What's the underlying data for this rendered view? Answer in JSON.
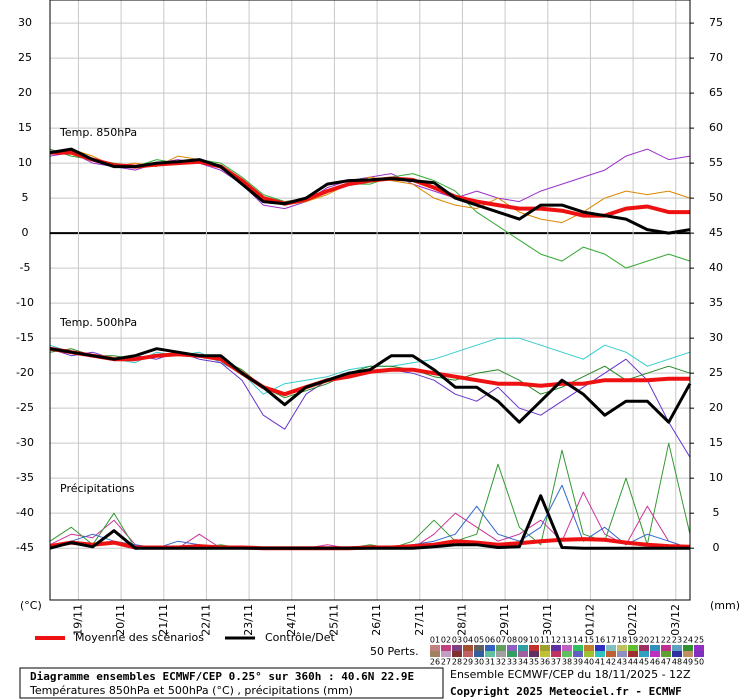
{
  "chart_data": {
    "type": "line",
    "title": "Diagramme ensembles ECMWF/CEP 0.25° sur 360h : 40.6N 22.9E",
    "subtitle": "Températures 850hPa et 500hPa (°C) , précipitations (mm)",
    "credit": "Ensemble ECMWF/CEP du 18/11/2025 - 12Z",
    "copyright": "Copyright 2025 Meteociel.fr - ECMWF",
    "y_label": "(°C)",
    "y2_label": "(mm)",
    "annotations": [
      "Temp. 850hPa",
      "Temp. 500hPa",
      "Précipitations"
    ],
    "grid": true,
    "x": [
      0,
      12,
      24,
      36,
      48,
      60,
      72,
      84,
      96,
      108,
      120,
      132,
      144,
      156,
      168,
      180,
      192,
      204,
      216,
      228,
      240,
      252,
      264,
      276,
      288,
      300,
      312,
      324,
      336,
      348,
      360
    ],
    "xlim": [
      0,
      360
    ],
    "xticks": [
      {
        "value": 16,
        "label": "19/11"
      },
      {
        "value": 40,
        "label": "20/11"
      },
      {
        "value": 64,
        "label": "21/11"
      },
      {
        "value": 88,
        "label": "22/11"
      },
      {
        "value": 112,
        "label": "23/11"
      },
      {
        "value": 136,
        "label": "24/11"
      },
      {
        "value": 160,
        "label": "25/11"
      },
      {
        "value": 184,
        "label": "26/11"
      },
      {
        "value": 208,
        "label": "27/11"
      },
      {
        "value": 232,
        "label": "28/11"
      },
      {
        "value": 256,
        "label": "29/11"
      },
      {
        "value": 280,
        "label": "30/11"
      },
      {
        "value": 304,
        "label": "01/12"
      },
      {
        "value": 328,
        "label": "02/12"
      },
      {
        "value": 352,
        "label": "03/12"
      }
    ],
    "ylim": [
      -52.4,
      33.3
    ],
    "yticks": [
      -45,
      -40,
      -35,
      -30,
      -25,
      -20,
      -15,
      -10,
      -5,
      0,
      5,
      10,
      15,
      20,
      25,
      30
    ],
    "y2lim": [
      -7.4,
      78.3
    ],
    "y2ticks": [
      0,
      5,
      10,
      15,
      20,
      25,
      30,
      35,
      40,
      45,
      50,
      55,
      60,
      65,
      70,
      75
    ],
    "series": [
      {
        "color": "#9933cc",
        "line_width": 1,
        "values": [
          11,
          11.5,
          10,
          9.5,
          9,
          10,
          10.5,
          10,
          9,
          7,
          4,
          3.5,
          4.5,
          6.5,
          7.5,
          8,
          8.5,
          7,
          6,
          5,
          6,
          5,
          4.5,
          6,
          7,
          8,
          9,
          11,
          12,
          10.5,
          11
        ]
      },
      {
        "color": "#33aa33",
        "line_width": 1,
        "values": [
          12,
          11,
          10.5,
          10,
          9.5,
          10.5,
          10,
          10.5,
          10,
          8,
          5.5,
          4.5,
          5,
          6,
          7,
          7,
          8,
          8.5,
          7.5,
          6,
          3,
          1,
          -1,
          -3,
          -4,
          -2,
          -3,
          -5,
          -4,
          -3,
          -4
        ]
      },
      {
        "color": "#dd8800",
        "line_width": 1,
        "values": [
          11.5,
          12,
          11,
          9.5,
          10,
          9.5,
          11,
          10.5,
          9.5,
          7.5,
          5,
          4,
          4.5,
          5.5,
          7,
          8,
          7.5,
          7,
          5,
          4,
          3.5,
          5,
          3,
          2,
          1.5,
          3,
          5,
          6,
          5.5,
          6,
          5
        ]
      },
      {
        "color": "#33cccc",
        "line_width": 1,
        "values": [
          -16,
          -17,
          -17.5,
          -18,
          -18.5,
          -17,
          -17.5,
          -17,
          -18.5,
          -20,
          -23,
          -21.5,
          -21,
          -20.5,
          -19.5,
          -19,
          -19,
          -18.5,
          -18,
          -17,
          -16,
          -15,
          -15,
          -16,
          -17,
          -18,
          -16,
          -17,
          -19,
          -18,
          -17
        ]
      },
      {
        "color": "#6633cc",
        "line_width": 1,
        "values": [
          -16.5,
          -17.5,
          -17,
          -18,
          -17.5,
          -18,
          -17,
          -18,
          -18.5,
          -21,
          -26,
          -28,
          -23,
          -21,
          -20,
          -20,
          -19.5,
          -20,
          -21,
          -23,
          -24,
          -22,
          -25,
          -26,
          -24,
          -22,
          -20,
          -18,
          -21,
          -27,
          -32
        ]
      },
      {
        "color": "#228822",
        "line_width": 1,
        "values": [
          -17,
          -16.5,
          -17.5,
          -17.5,
          -18,
          -17.5,
          -17,
          -17.5,
          -18,
          -19.5,
          -22,
          -23.5,
          -22.5,
          -21.5,
          -20,
          -19,
          -19,
          -19.5,
          -20.5,
          -21,
          -20,
          -19.5,
          -21,
          -23,
          -22,
          -20.5,
          -19,
          -21,
          -20,
          -19,
          -20
        ]
      },
      {
        "color": "#cc3399",
        "line_width": 1,
        "axis": "y2",
        "values": [
          0.5,
          2,
          1.5,
          4,
          0.5,
          0,
          0,
          2,
          0,
          0,
          0,
          0,
          0,
          0.5,
          0,
          0,
          0.3,
          0,
          2,
          5,
          3,
          1,
          2,
          4,
          1,
          8,
          2,
          0.5,
          6,
          1,
          0
        ]
      },
      {
        "color": "#339933",
        "line_width": 1,
        "axis": "y2",
        "values": [
          1,
          3,
          0.5,
          5,
          0,
          0.3,
          0,
          0,
          0.5,
          0,
          0,
          0,
          0,
          0,
          0,
          0.5,
          0,
          1,
          4,
          1,
          2,
          12,
          3,
          0.5,
          14,
          2,
          1,
          10,
          0.5,
          15,
          2
        ]
      },
      {
        "color": "#3366cc",
        "line_width": 1,
        "axis": "y2",
        "values": [
          0,
          1,
          2,
          1,
          0.5,
          0,
          1,
          0.5,
          0,
          0,
          0,
          0,
          0,
          0,
          0,
          0,
          0,
          0.5,
          1,
          2,
          6,
          2,
          1,
          3,
          9,
          1,
          3,
          0.5,
          2,
          1,
          0
        ]
      },
      {
        "name": "Moyenne des scénarios",
        "color": "#ee1111",
        "line_width": 4,
        "values": [
          11.5,
          11.5,
          10.5,
          9.7,
          9.5,
          9.8,
          10,
          10.2,
          9.5,
          7.5,
          5,
          4.2,
          4.8,
          6,
          7,
          7.5,
          7.8,
          7.6,
          6.5,
          5.2,
          4.5,
          4,
          3.5,
          3.5,
          3.2,
          2.5,
          2.5,
          3.5,
          3.8,
          3,
          3
        ]
      },
      {
        "name": "Contrôle/Det",
        "color": "#000000",
        "line_width": 3,
        "values": [
          11.5,
          12,
          10.5,
          9.5,
          9.5,
          10,
          10.2,
          10.5,
          9.5,
          7,
          4.5,
          4.2,
          5,
          7,
          7.5,
          7.6,
          7.8,
          7.5,
          7.2,
          5,
          4,
          3,
          2,
          4,
          4,
          3,
          2.5,
          2,
          0.5,
          0,
          0.5
        ]
      },
      {
        "color": "#ee1111",
        "line_width": 4,
        "values": [
          -16.5,
          -17,
          -17.5,
          -18,
          -18,
          -17.5,
          -17.3,
          -17.5,
          -18,
          -20,
          -22,
          -23,
          -22,
          -21,
          -20.5,
          -19.8,
          -19.5,
          -19.5,
          -20,
          -20.5,
          -21,
          -21.5,
          -21.5,
          -21.8,
          -21.5,
          -21.5,
          -21,
          -21,
          -21,
          -20.8,
          -20.8
        ]
      },
      {
        "color": "#000000",
        "line_width": 3,
        "values": [
          -16.5,
          -17,
          -17.5,
          -18,
          -17.5,
          -16.5,
          -17,
          -17.5,
          -17.5,
          -20,
          -22,
          -24.5,
          -22,
          -21,
          -20,
          -19.5,
          -17.5,
          -17.5,
          -19.5,
          -22,
          -22,
          -24,
          -27,
          -24,
          -21,
          -23,
          -26,
          -24,
          -24,
          -27,
          -21.5
        ]
      },
      {
        "color": "#ee1111",
        "line_width": 4,
        "axis": "y2",
        "values": [
          0.3,
          0.8,
          0.5,
          0.8,
          0.1,
          0.1,
          0.1,
          0.3,
          0.1,
          0.1,
          0,
          0,
          0,
          0,
          0,
          0.1,
          0.1,
          0.3,
          0.5,
          1,
          0.8,
          0.5,
          0.7,
          1,
          1.2,
          1.3,
          1.2,
          0.8,
          0.5,
          0.3,
          0.2
        ]
      },
      {
        "color": "#000000",
        "line_width": 3,
        "axis": "y2",
        "values": [
          0,
          0.8,
          0.2,
          2.5,
          0,
          0,
          0,
          0,
          0,
          0,
          0,
          0,
          0,
          0,
          0,
          0,
          0,
          0,
          0.2,
          0.5,
          0.5,
          0.1,
          0.2,
          7.5,
          0.1,
          0,
          0,
          0,
          0,
          0,
          0
        ]
      }
    ],
    "members": {
      "label": "50 Perts.",
      "items": [
        {
          "label": "01",
          "color": "#c08080"
        },
        {
          "label": "02",
          "color": "#c04080"
        },
        {
          "label": "03",
          "color": "#804080"
        },
        {
          "label": "04",
          "color": "#a05030"
        },
        {
          "label": "05",
          "color": "#606060"
        },
        {
          "label": "06",
          "color": "#3060c0"
        },
        {
          "label": "07",
          "color": "#60a060"
        },
        {
          "label": "08",
          "color": "#9060c0"
        },
        {
          "label": "09",
          "color": "#30a0a0"
        },
        {
          "label": "10",
          "color": "#c03030"
        },
        {
          "label": "11",
          "color": "#a0a030"
        },
        {
          "label": "12",
          "color": "#6030a0"
        },
        {
          "label": "13",
          "color": "#c060c0"
        },
        {
          "label": "14",
          "color": "#30c060"
        },
        {
          "label": "15",
          "color": "#c08030"
        },
        {
          "label": "16",
          "color": "#3030c0"
        },
        {
          "label": "17",
          "color": "#80c0c0"
        },
        {
          "label": "18",
          "color": "#c0c060"
        },
        {
          "label": "19",
          "color": "#60c030"
        },
        {
          "label": "20",
          "color": "#a03060"
        },
        {
          "label": "21",
          "color": "#3090c0"
        },
        {
          "label": "22",
          "color": "#c03090"
        },
        {
          "label": "23",
          "color": "#60a0c0"
        },
        {
          "label": "24",
          "color": "#309030"
        },
        {
          "label": "25",
          "color": "#9030c0"
        },
        {
          "label": "26",
          "color": "#a08060"
        },
        {
          "label": "27",
          "color": "#c0a0c0"
        },
        {
          "label": "28",
          "color": "#803030"
        },
        {
          "label": "29",
          "color": "#c06060"
        },
        {
          "label": "30",
          "color": "#3060a0"
        },
        {
          "label": "31",
          "color": "#60c0a0"
        },
        {
          "label": "32",
          "color": "#a0a0a0"
        },
        {
          "label": "33",
          "color": "#30a060"
        },
        {
          "label": "34",
          "color": "#a060a0"
        },
        {
          "label": "35",
          "color": "#603060"
        },
        {
          "label": "36",
          "color": "#c0c030"
        },
        {
          "label": "37",
          "color": "#c03060"
        },
        {
          "label": "38",
          "color": "#60c060"
        },
        {
          "label": "39",
          "color": "#6060c0"
        },
        {
          "label": "40",
          "color": "#a0c030"
        },
        {
          "label": "41",
          "color": "#30c0c0"
        },
        {
          "label": "42",
          "color": "#c06030"
        },
        {
          "label": "43",
          "color": "#9090c0"
        },
        {
          "label": "44",
          "color": "#a03030"
        },
        {
          "label": "45",
          "color": "#30a0c0"
        },
        {
          "label": "46",
          "color": "#c030c0"
        },
        {
          "label": "47",
          "color": "#60a030"
        },
        {
          "label": "48",
          "color": "#3030a0"
        },
        {
          "label": "49",
          "color": "#c09060"
        },
        {
          "label": "50",
          "color": "#8030c0"
        }
      ]
    }
  }
}
